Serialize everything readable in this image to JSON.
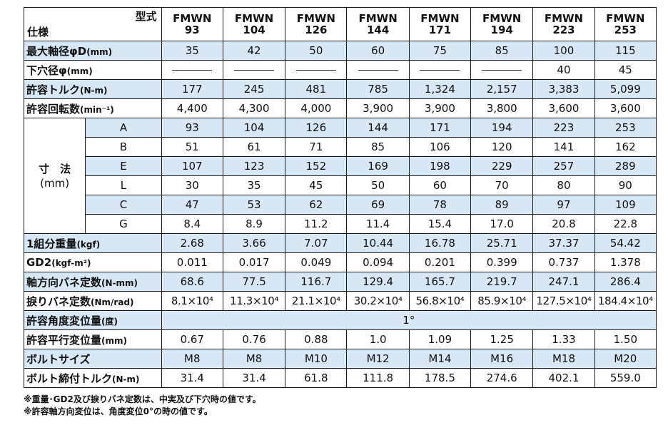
{
  "header": {
    "model_label": "型式",
    "spec_label": "仕様",
    "models": [
      {
        "brand": "FMWN",
        "num": "93"
      },
      {
        "brand": "FMWN",
        "num": "104"
      },
      {
        "brand": "FMWN",
        "num": "126"
      },
      {
        "brand": "FMWN",
        "num": "144"
      },
      {
        "brand": "FMWN",
        "num": "171"
      },
      {
        "brand": "FMWN",
        "num": "194"
      },
      {
        "brand": "FMWN",
        "num": "223"
      },
      {
        "brand": "FMWN",
        "num": "253"
      }
    ]
  },
  "rows_top": [
    {
      "label": "最大軸径φD",
      "unit": "(mm)",
      "values": [
        "35",
        "42",
        "50",
        "60",
        "75",
        "85",
        "100",
        "115"
      ]
    },
    {
      "label": "下穴径φ",
      "unit": "(mm)",
      "values": [
        "—",
        "—",
        "—",
        "—",
        "—",
        "—",
        "40",
        "45"
      ]
    },
    {
      "label": "許容トルク",
      "unit": "(N-m)",
      "values": [
        "177",
        "245",
        "481",
        "785",
        "1,324",
        "2,157",
        "3,383",
        "5,099"
      ]
    },
    {
      "label": "許容回転数",
      "unit": "(min⁻¹)",
      "values": [
        "4,400",
        "4,300",
        "4,000",
        "3,900",
        "3,900",
        "3,800",
        "3,600",
        "3,600"
      ]
    }
  ],
  "dimensions": {
    "label": "寸　法",
    "unit": "(mm)",
    "rows": [
      {
        "name": "A",
        "values": [
          "93",
          "104",
          "126",
          "144",
          "171",
          "194",
          "223",
          "253"
        ]
      },
      {
        "name": "B",
        "values": [
          "51",
          "61",
          "71",
          "85",
          "106",
          "120",
          "141",
          "162"
        ]
      },
      {
        "name": "E",
        "values": [
          "107",
          "123",
          "152",
          "169",
          "198",
          "229",
          "257",
          "289"
        ]
      },
      {
        "name": "L",
        "values": [
          "30",
          "35",
          "45",
          "50",
          "60",
          "70",
          "80",
          "90"
        ]
      },
      {
        "name": "C",
        "values": [
          "47",
          "53",
          "62",
          "69",
          "78",
          "89",
          "97",
          "109"
        ]
      },
      {
        "name": "G",
        "values": [
          "8.4",
          "8.9",
          "11.2",
          "11.4",
          "15.4",
          "17.0",
          "20.8",
          "22.8"
        ]
      }
    ]
  },
  "rows_mid": [
    {
      "label": "1組分重量",
      "unit": "(kgf)",
      "values": [
        "2.68",
        "3.66",
        "7.07",
        "10.44",
        "16.78",
        "25.71",
        "37.37",
        "54.42"
      ]
    },
    {
      "label": "GD2",
      "unit": "(kgf-m²)",
      "values": [
        "0.011",
        "0.017",
        "0.049",
        "0.094",
        "0.201",
        "0.399",
        "0.737",
        "1.378"
      ]
    },
    {
      "label": "軸方向バネ定数",
      "unit": "(N-mm)",
      "values": [
        "68.6",
        "77.5",
        "116.7",
        "129.4",
        "165.7",
        "219.7",
        "247.1",
        "286.4"
      ]
    },
    {
      "label": "捩りバネ定数",
      "unit": "(Nm/rad)",
      "values": [
        "8.1×10⁴",
        "11.3×10⁴",
        "21.1×10⁴",
        "30.2×10⁴",
        "56.8×10⁴",
        "85.9×10⁴",
        "127.5×10⁴",
        "184.4×10⁴"
      ]
    }
  ],
  "angle_row": {
    "label": "許容角度変位量",
    "unit": "(度)",
    "value": "1°"
  },
  "rows_bottom": [
    {
      "label": "許容平行変位量",
      "unit": "(mm)",
      "values": [
        "0.67",
        "0.76",
        "0.88",
        "1.0",
        "1.09",
        "1.25",
        "1.33",
        "1.50"
      ]
    },
    {
      "label": "ボルトサイズ",
      "unit": "",
      "values": [
        "M8",
        "M8",
        "M10",
        "M12",
        "M14",
        "M16",
        "M18",
        "M20"
      ]
    },
    {
      "label": "ボルト締付トルク",
      "unit": "(N-m)",
      "values": [
        "31.4",
        "31.4",
        "61.8",
        "111.8",
        "178.5",
        "274.6",
        "402.1",
        "559.0"
      ]
    }
  ],
  "notes": [
    "※重量･GD2及び捩りバネ定数は、中実及び下穴時の値です。",
    "※許容軸方向変位は、角度変位0°の時の値です。"
  ],
  "colors": {
    "row_highlight": "#d7e7f5",
    "border": "#1a1a1a"
  }
}
